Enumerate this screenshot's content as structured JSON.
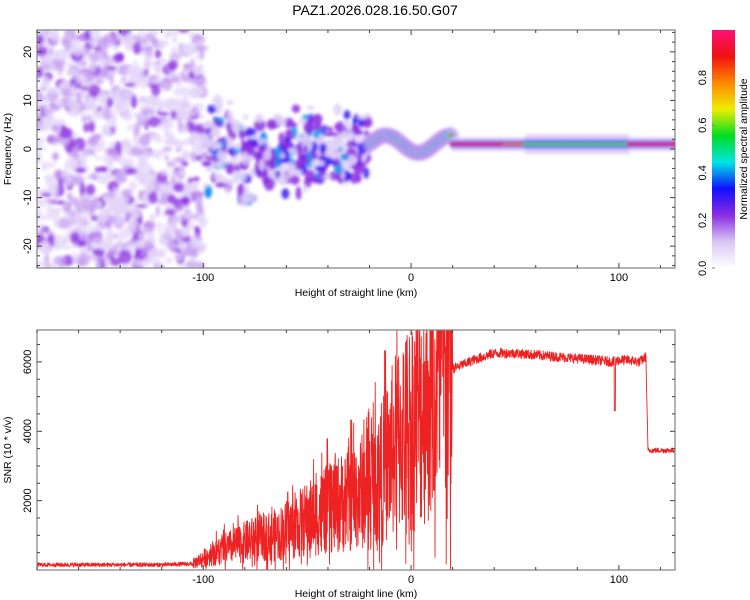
{
  "title": "PAZ1.2026.028.16.50.G07",
  "colors": {
    "frame": "#808080",
    "snr_line": "#ee2222",
    "noise_purple": "#8a2be2",
    "background": "#ffffff"
  },
  "chart_data": [
    {
      "type": "heatmap",
      "name": "spectrogram",
      "title": "PAZ1.2026.028.16.50.G07",
      "xlabel": "Height of straight line (km)",
      "ylabel": "Frequency (Hz)",
      "xlim": [
        -180,
        127
      ],
      "ylim": [
        -24.5,
        24.5
      ],
      "xticks": [
        -100,
        0,
        100
      ],
      "xtick_labels": [
        "-100",
        "0",
        "100"
      ],
      "yticks": [
        -20,
        -10,
        0,
        10,
        20
      ],
      "ytick_labels": [
        "-20",
        "-10",
        "0",
        "10",
        "20"
      ],
      "colorbar": {
        "label": "Normalized spectral amplitude",
        "range": [
          0.0,
          1.0
        ],
        "ticks": [
          0.0,
          0.2,
          0.4,
          0.6,
          0.8
        ],
        "tick_labels": [
          "0.0",
          "0.2",
          "0.4",
          "0.6",
          "0.8"
        ],
        "colormap": [
          "#ffffff",
          "#d9c6f5",
          "#8a2be2",
          "#1010ff",
          "#00e5e5",
          "#00dd22",
          "#eeee00",
          "#ff8800",
          "#ee1111",
          "#ff1177"
        ]
      },
      "regions": [
        {
          "description": "noise",
          "x_range": [
            -180,
            -100
          ],
          "freq_range": [
            -24.5,
            24.5
          ],
          "amplitude": 0.1
        },
        {
          "description": "scattered signal",
          "x_range": [
            -100,
            -20
          ],
          "freq_center": 0,
          "freq_spread": 8,
          "amplitude": 0.25
        },
        {
          "description": "wavy signal",
          "x_range": [
            -20,
            20
          ],
          "freq_center": 1,
          "freq_spread": 2,
          "amplitude": 0.8
        },
        {
          "description": "stable tone",
          "x_range": [
            20,
            127
          ],
          "freq_center": 1,
          "freq_spread": 1,
          "amplitude": 1.0
        }
      ]
    },
    {
      "type": "line",
      "name": "snr",
      "xlabel": "Height of straight line (km)",
      "ylabel": "SNR (10 * v/v)",
      "xlim": [
        -180,
        127
      ],
      "ylim": [
        0,
        6920
      ],
      "xticks": [
        -100,
        0,
        100
      ],
      "xtick_labels": [
        "-100",
        "0",
        "100"
      ],
      "yticks": [
        2000,
        4000,
        6000
      ],
      "ytick_labels": [
        "2000",
        "4000",
        "6000"
      ],
      "series": [
        {
          "name": "SNR",
          "x": [
            -180,
            -150,
            -120,
            -105,
            -95,
            -85,
            -75,
            -65,
            -55,
            -45,
            -35,
            -25,
            -15,
            -10,
            -5,
            0,
            5,
            10,
            15,
            20,
            30,
            40,
            50,
            60,
            70,
            80,
            90,
            97,
            100,
            105,
            110,
            113,
            114,
            120,
            127
          ],
          "y": [
            150,
            150,
            150,
            180,
            500,
            700,
            900,
            1000,
            1300,
            1600,
            1900,
            2200,
            2700,
            3300,
            3900,
            4200,
            4800,
            5100,
            5500,
            5800,
            6050,
            6250,
            6250,
            6200,
            6150,
            6100,
            6050,
            6000,
            6050,
            6050,
            6000,
            6150,
            3450,
            3450,
            3450
          ]
        }
      ]
    }
  ]
}
